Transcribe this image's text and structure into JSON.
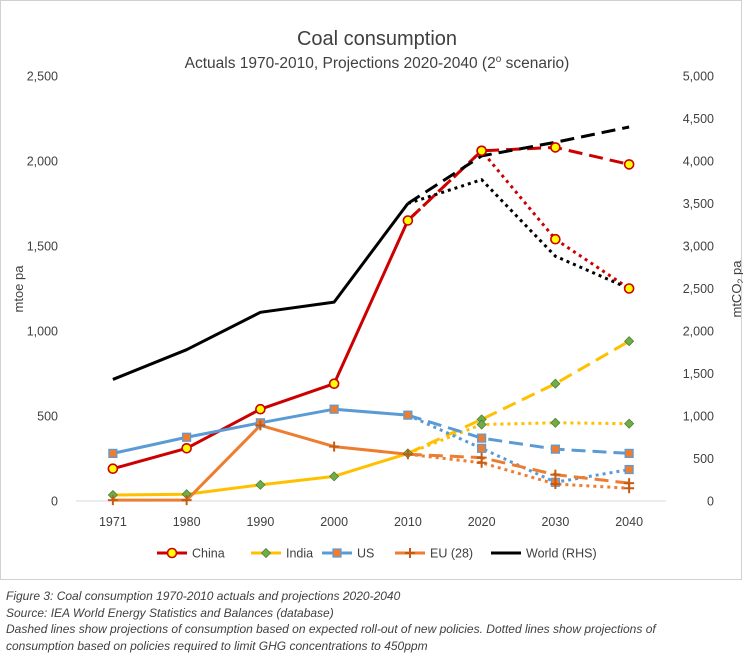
{
  "chart_data": {
    "type": "line",
    "title": "Coal consumption",
    "subtitle": "Actuals 1970-2010, Projections 2020-2040 (2",
    "subtitle_sup": "o",
    "subtitle_end": " scenario)",
    "ylabel_left": "mtoe pa",
    "ylabel_right_main": "mtCO",
    "ylabel_right_sub": "2",
    "ylabel_right_end": " pa",
    "x_categories": [
      "1971",
      "1980",
      "1990",
      "2000",
      "2010",
      "2020",
      "2030",
      "2040"
    ],
    "y_left": {
      "min": 0,
      "max": 2500,
      "step": 500,
      "tick_labels": [
        "0",
        "500",
        "1,000",
        "1,500",
        "2,000",
        "2,500"
      ]
    },
    "y_right": {
      "min": 0,
      "max": 5000,
      "step": 500,
      "tick_labels": [
        "0",
        "500",
        "1,000",
        "1,500",
        "2,000",
        "2,500",
        "3,000",
        "3,500",
        "4,000",
        "4,500",
        "5,000"
      ]
    },
    "grid": false,
    "legend_position": "bottom",
    "series": [
      {
        "name": "China",
        "color": "#cc0000",
        "marker": "circle",
        "marker_fill": "#ffff00",
        "marker_stroke": "#cc0000",
        "axis": "left",
        "actual": [
          190,
          310,
          540,
          690,
          1650
        ],
        "dashed": [
          1650,
          2060,
          2080,
          1980
        ],
        "dotted": [
          1650,
          2060,
          1540,
          1250
        ]
      },
      {
        "name": "India",
        "color": "#ffc000",
        "marker": "diamond",
        "marker_fill": "#70ad47",
        "marker_stroke": "#507e32",
        "axis": "left",
        "actual": [
          35,
          40,
          95,
          145,
          280
        ],
        "dashed": [
          280,
          480,
          690,
          940
        ],
        "dotted": [
          280,
          450,
          460,
          455
        ]
      },
      {
        "name": "US",
        "color": "#5b9bd5",
        "marker": "square",
        "marker_fill": "#ed7d31",
        "marker_stroke": "#5b9bd5",
        "axis": "left",
        "actual": [
          280,
          375,
          460,
          540,
          505
        ],
        "dashed": [
          505,
          370,
          305,
          280
        ],
        "dotted": [
          505,
          310,
          110,
          185
        ]
      },
      {
        "name": "EU (28)",
        "color": "#ed7d31",
        "marker": "cross",
        "marker_fill": "#ed7d31",
        "marker_stroke": "#c55a11",
        "axis": "left",
        "actual": [
          5,
          5,
          445,
          320,
          275
        ],
        "dashed": [
          275,
          255,
          155,
          105
        ],
        "dotted": [
          275,
          225,
          100,
          75
        ]
      },
      {
        "name": "World (RHS)",
        "color": "#000000",
        "marker": "none",
        "axis": "right",
        "actual": [
          1430,
          1780,
          2220,
          2340,
          3500
        ],
        "dashed": [
          3500,
          4060,
          4220,
          4400
        ],
        "dotted": [
          3500,
          3780,
          2880,
          2500
        ]
      }
    ]
  },
  "caption": {
    "line1": "Figure 3: Coal consumption 1970-2010 actuals and projections 2020-2040",
    "line2": "Source: IEA World Energy Statistics and Balances (database)",
    "line3": "Dashed lines show projections of consumption based on expected roll-out of new policies. Dotted lines show projections of",
    "line4": "consumption based on policies required to limit GHG concentrations to 450ppm"
  }
}
